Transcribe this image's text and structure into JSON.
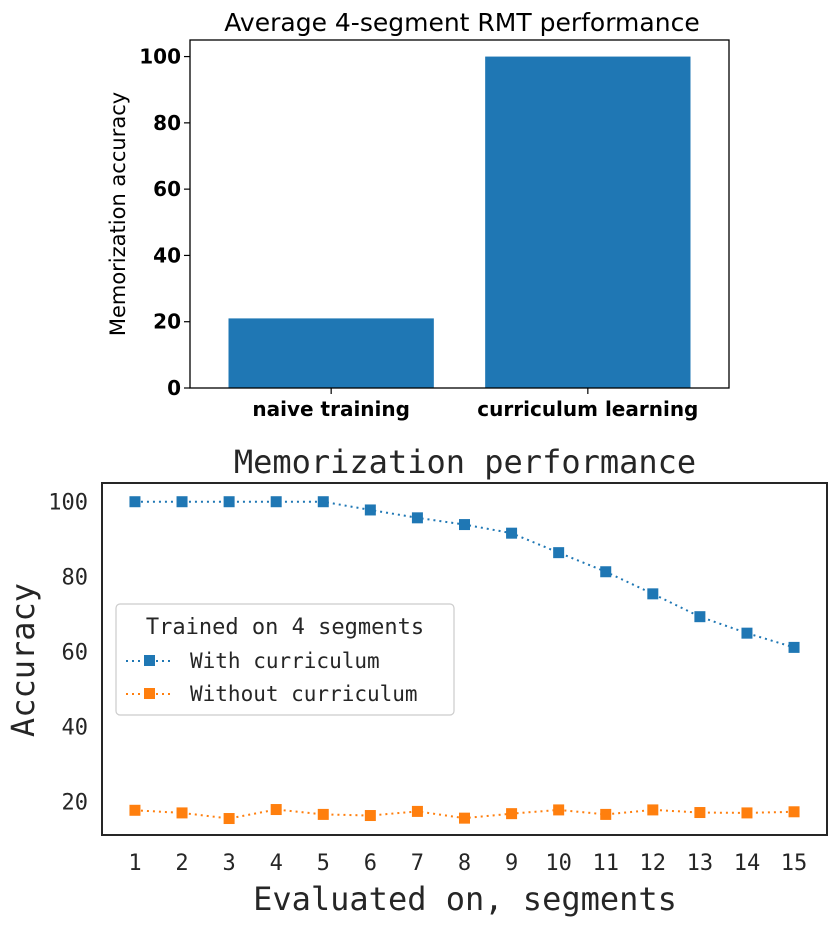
{
  "chart_data": [
    {
      "type": "bar",
      "title": "Average 4-segment RMT performance",
      "xlabel": "",
      "ylabel": "Memorization accuracy",
      "categories": [
        "naive training",
        "curriculum learning"
      ],
      "values": [
        21,
        100
      ],
      "ylim": [
        0,
        105
      ],
      "yticks": [
        0,
        20,
        40,
        60,
        80,
        100
      ],
      "color": "#1f77b4",
      "grid": false
    },
    {
      "type": "line",
      "title": "Memorization performance",
      "xlabel": "Evaluated on, segments",
      "ylabel": "Accuracy",
      "x": [
        1,
        2,
        3,
        4,
        5,
        6,
        7,
        8,
        9,
        10,
        11,
        12,
        13,
        14,
        15
      ],
      "xlim": [
        0.3,
        15.7
      ],
      "ylim": [
        11,
        105
      ],
      "yticks": [
        20,
        40,
        60,
        80,
        100
      ],
      "legend_title": "Trained on 4 segments",
      "legend_position": "center-left",
      "grid": false,
      "series": [
        {
          "name": "With curriculum",
          "color": "#1f77b4",
          "marker": "square",
          "linestyle": "dotted",
          "values": [
            100,
            100,
            100,
            100,
            100,
            97.8,
            95.7,
            93.9,
            91.6,
            86.4,
            81.3,
            75.4,
            69.3,
            64.9,
            61.1
          ]
        },
        {
          "name": "Without curriculum",
          "color": "#ff7f0e",
          "marker": "square",
          "linestyle": "dotted",
          "values": [
            17.6,
            16.9,
            15.4,
            17.8,
            16.5,
            16.2,
            17.3,
            15.5,
            16.7,
            17.7,
            16.5,
            17.7,
            17.0,
            16.9,
            17.2
          ]
        }
      ]
    }
  ]
}
